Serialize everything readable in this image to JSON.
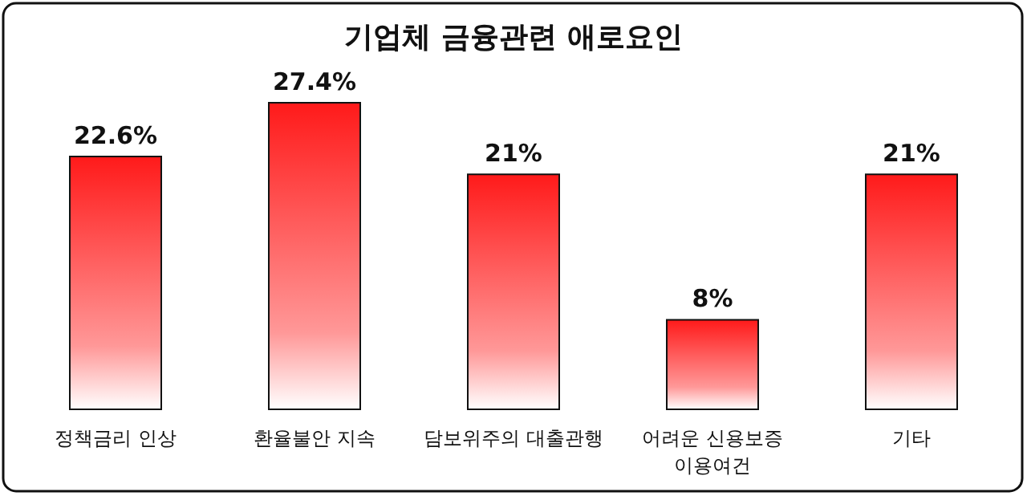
{
  "chart_data": {
    "type": "bar",
    "title": "기업체 금융관련 애로요인",
    "categories": [
      "정책금리 인상",
      "환율불안 지속",
      "담보위주의 대출관행",
      "어려운 신용보증 이용여건",
      "기타"
    ],
    "values": [
      22.6,
      27.4,
      21,
      8,
      21
    ],
    "value_labels": [
      "22.6%",
      "27.4%",
      "21%",
      "8%",
      "21%"
    ],
    "color": "#ff1a1a"
  }
}
